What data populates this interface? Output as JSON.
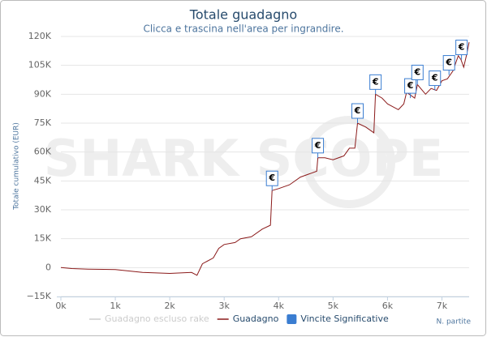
{
  "chart_data": {
    "type": "line",
    "title": "Totale guadagno",
    "subtitle": "Clicca e trascina nell'area per ingrandire.",
    "y_label": "Totale cumulativo (EUR)",
    "x_label": "N. partite",
    "watermark": "SHARK SCOPE",
    "xlim": [
      0,
      7500
    ],
    "ylim": [
      -15000,
      120000
    ],
    "xticks": [
      {
        "value": 0,
        "label": "0k"
      },
      {
        "value": 1000,
        "label": "1k"
      },
      {
        "value": 2000,
        "label": "2k"
      },
      {
        "value": 3000,
        "label": "3k"
      },
      {
        "value": 4000,
        "label": "4k"
      },
      {
        "value": 5000,
        "label": "5k"
      },
      {
        "value": 6000,
        "label": "6k"
      },
      {
        "value": 7000,
        "label": "7k"
      }
    ],
    "yticks": [
      {
        "value": -15000,
        "label": "−15K"
      },
      {
        "value": 0,
        "label": "0"
      },
      {
        "value": 15000,
        "label": "15K"
      },
      {
        "value": 30000,
        "label": "30K"
      },
      {
        "value": 45000,
        "label": "45K"
      },
      {
        "value": 60000,
        "label": "60K"
      },
      {
        "value": 75000,
        "label": "75K"
      },
      {
        "value": 90000,
        "label": "90K"
      },
      {
        "value": 105000,
        "label": "105K"
      },
      {
        "value": 120000,
        "label": "120K"
      }
    ],
    "grid": true,
    "series": [
      {
        "name": "Guadagno escluso rake",
        "color": "#cccccc",
        "visible": false
      },
      {
        "name": "Guadagno",
        "color": "#8b1a1a",
        "visible": true,
        "x": [
          0,
          200,
          500,
          1000,
          1500,
          2000,
          2400,
          2500,
          2600,
          2800,
          2900,
          3000,
          3200,
          3300,
          3500,
          3700,
          3850,
          3880,
          4000,
          4200,
          4400,
          4600,
          4700,
          4720,
          4850,
          5000,
          5200,
          5300,
          5400,
          5450,
          5600,
          5750,
          5780,
          5900,
          6000,
          6200,
          6300,
          6350,
          6500,
          6550,
          6700,
          6800,
          6900,
          7000,
          7100,
          7200,
          7300,
          7350,
          7400,
          7450,
          7500
        ],
        "values": [
          0,
          -500,
          -800,
          -1000,
          -2500,
          -3000,
          -2500,
          -4000,
          2000,
          5000,
          10000,
          12000,
          13000,
          15000,
          16000,
          20000,
          22000,
          40000,
          41000,
          43000,
          47000,
          49000,
          50000,
          57000,
          57000,
          56000,
          58000,
          62000,
          62000,
          75000,
          73000,
          70000,
          90000,
          88000,
          85000,
          82000,
          85000,
          91000,
          88000,
          95000,
          90000,
          93000,
          92000,
          97000,
          98000,
          102000,
          110000,
          108000,
          104000,
          110000,
          117000
        ]
      }
    ],
    "flags": {
      "name": "Vincite Significative",
      "color": "#3a7dd1",
      "title": "€",
      "x": [
        3880,
        4720,
        5450,
        5780,
        6420,
        6550,
        6870,
        7130,
        7360
      ],
      "values": [
        40000,
        57000,
        75000,
        90000,
        88000,
        95000,
        92000,
        100000,
        108000
      ]
    }
  }
}
